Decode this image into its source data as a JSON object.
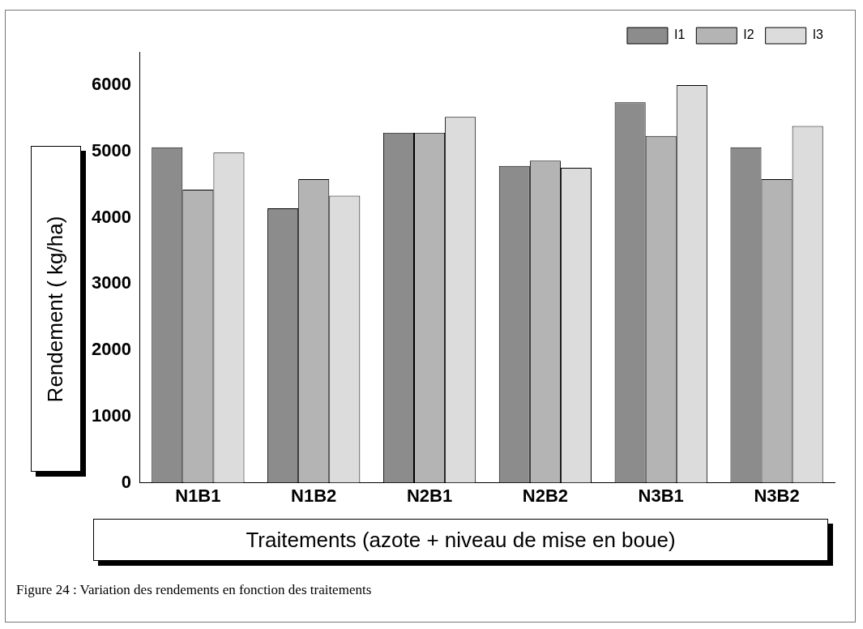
{
  "chart_data": {
    "type": "bar",
    "xlabel": "Traitements (azote + niveau de mise en boue)",
    "ylabel": "Rendement ( kg/ha)",
    "annotations": [
      "Figure 24 : Variation des rendements en fonction des traitements"
    ],
    "categories": [
      "N1B1",
      "N1B2",
      "N2B1",
      "N2B2",
      "N3B1",
      "N3B2"
    ],
    "series": [
      {
        "name": "I1",
        "color": "#8c8c8c",
        "values": [
          5060,
          4140,
          5280,
          4780,
          5740,
          5060
        ]
      },
      {
        "name": "I2",
        "color": "#b4b4b4",
        "values": [
          4420,
          4580,
          5280,
          4860,
          5230,
          4580
        ]
      },
      {
        "name": "I3",
        "color": "#dcdcdc",
        "values": [
          4980,
          4330,
          5520,
          4750,
          6000,
          5380
        ]
      }
    ],
    "ylim": [
      0,
      6500
    ],
    "yticks": [
      0,
      1000,
      2000,
      3000,
      4000,
      5000,
      6000
    ],
    "grid": false,
    "legend": "top right"
  }
}
